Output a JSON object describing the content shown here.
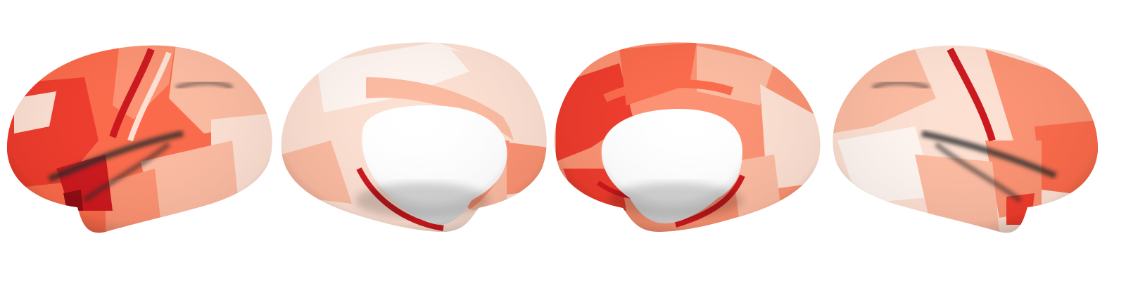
{
  "figure": {
    "views": [
      {
        "view": "left-lateral"
      },
      {
        "view": "left-medial"
      },
      {
        "view": "right-medial"
      },
      {
        "view": "right-lateral"
      }
    ],
    "colors": {
      "background": "#ffffff",
      "low": "#fff5f0",
      "pale": "#fde0d2",
      "light": "#fcbba1",
      "mid": "#fc9272",
      "strong": "#fb6a4a",
      "high": "#ef3b2c",
      "deep": "#cb181d",
      "max": "#8f0c12",
      "shadow": "#3a3a3a"
    }
  }
}
